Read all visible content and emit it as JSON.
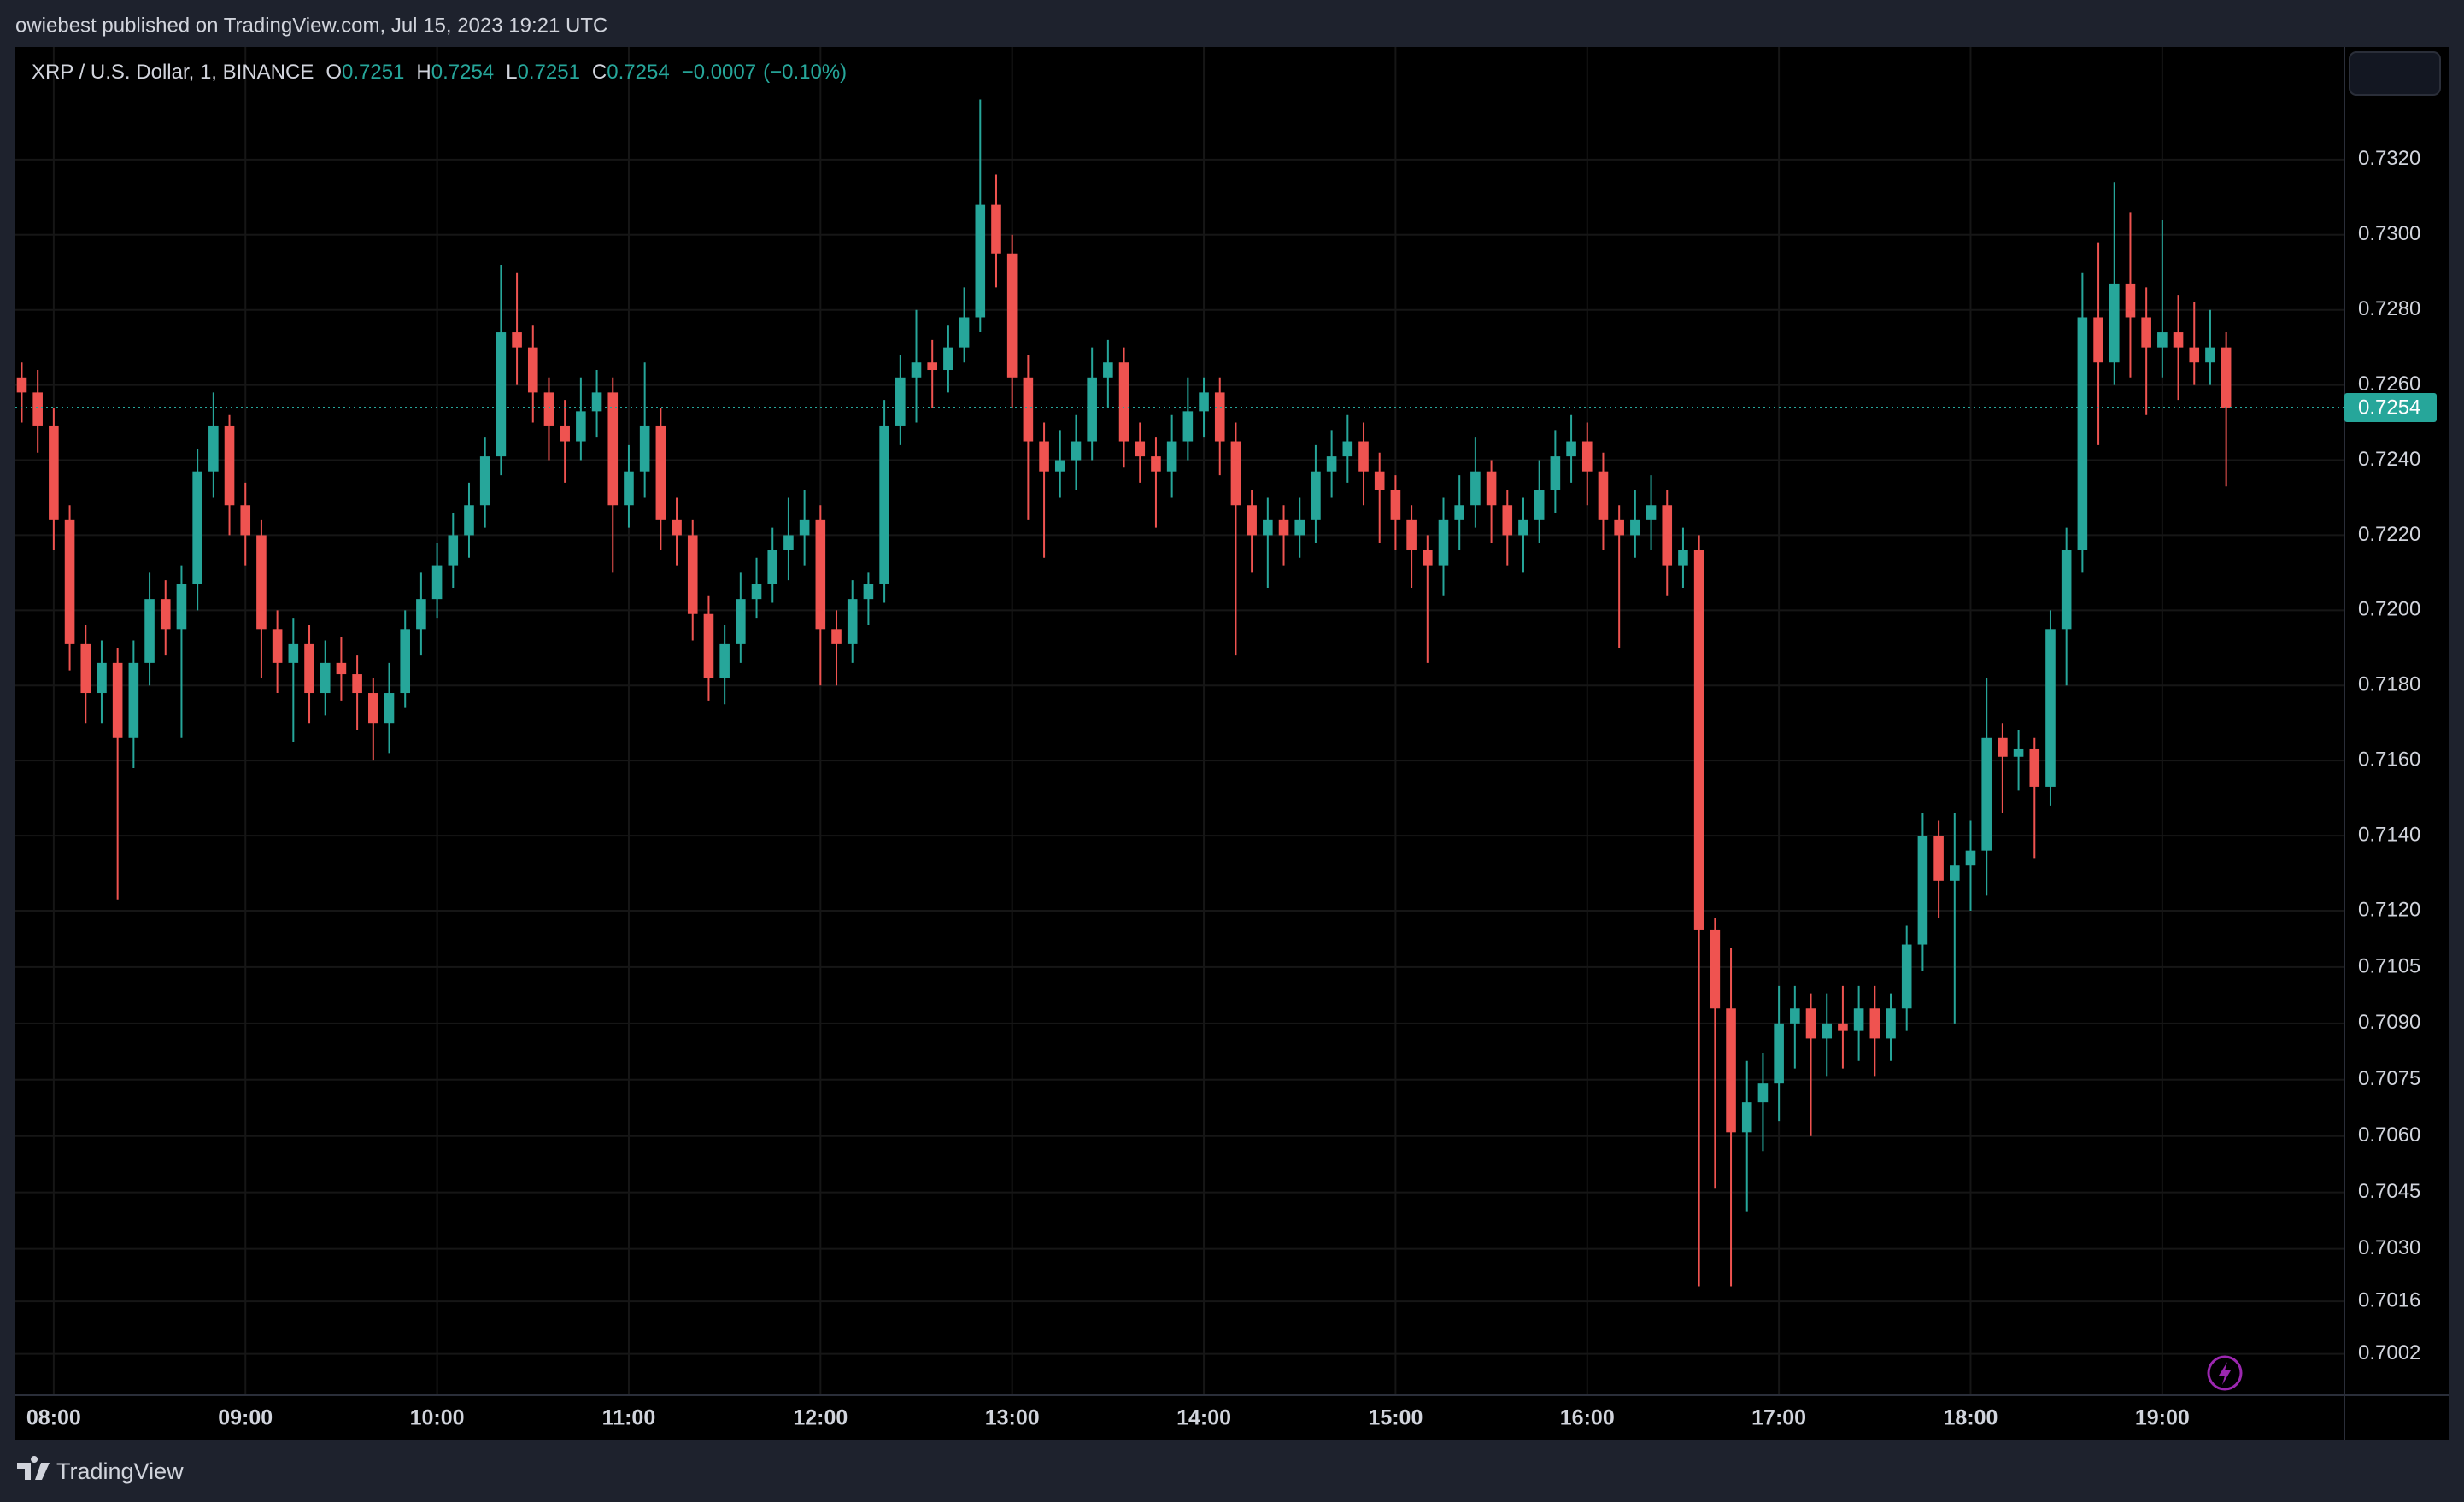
{
  "header": {
    "published": "owiebest published on TradingView.com, Jul 15, 2023 19:21 UTC"
  },
  "chart_data": {
    "type": "candlestick",
    "symbol": "XRP / U.S. Dollar, 1, BINANCE",
    "legend": [
      {
        "label": "O",
        "value": 0.7251
      },
      {
        "label": "H",
        "value": 0.7254
      },
      {
        "label": "L",
        "value": 0.7251
      },
      {
        "label": "C",
        "value": 0.7254
      }
    ],
    "change": {
      "value": -0.0007,
      "label": "−0.0007"
    },
    "change_percent": {
      "value": -0.1,
      "label": "(−0.10%)"
    },
    "up_color": "#26a69a",
    "down_color": "#ef5350",
    "grid": true,
    "last_price": 0.7254,
    "x": [
      "07:50",
      "07:55",
      "08:00",
      "08:05",
      "08:10",
      "08:15",
      "08:20",
      "08:25",
      "08:30",
      "08:35",
      "08:40",
      "08:45",
      "08:50",
      "08:55",
      "09:00",
      "09:05",
      "09:10",
      "09:15",
      "09:20",
      "09:25",
      "09:30",
      "09:35",
      "09:40",
      "09:45",
      "09:50",
      "09:55",
      "10:00",
      "10:05",
      "10:10",
      "10:15",
      "10:20",
      "10:25",
      "10:30",
      "10:35",
      "10:40",
      "10:45",
      "10:50",
      "10:55",
      "11:00",
      "11:05",
      "11:10",
      "11:15",
      "11:20",
      "11:25",
      "11:30",
      "11:35",
      "11:40",
      "11:45",
      "11:50",
      "11:55",
      "12:00",
      "12:05",
      "12:10",
      "12:15",
      "12:20",
      "12:25",
      "12:30",
      "12:35",
      "12:40",
      "12:45",
      "12:50",
      "12:55",
      "13:00",
      "13:05",
      "13:10",
      "13:15",
      "13:20",
      "13:25",
      "13:30",
      "13:35",
      "13:40",
      "13:45",
      "13:50",
      "13:55",
      "14:00",
      "14:05",
      "14:10",
      "14:15",
      "14:20",
      "14:25",
      "14:30",
      "14:35",
      "14:40",
      "14:45",
      "14:50",
      "14:55",
      "15:00",
      "15:05",
      "15:10",
      "15:15",
      "15:20",
      "15:25",
      "15:30",
      "15:35",
      "15:40",
      "15:45",
      "15:50",
      "15:55",
      "16:00",
      "16:05",
      "16:10",
      "16:15",
      "16:20",
      "16:25",
      "16:30",
      "16:35",
      "16:40",
      "16:45",
      "16:50",
      "16:55",
      "17:00",
      "17:05",
      "17:10",
      "17:15",
      "17:20",
      "17:25",
      "17:30",
      "17:35",
      "17:40",
      "17:45",
      "17:50",
      "17:55",
      "18:00",
      "18:05",
      "18:10",
      "18:15",
      "18:20",
      "18:25",
      "18:30",
      "18:35",
      "18:40",
      "18:45",
      "18:50",
      "18:55",
      "19:00",
      "19:05",
      "19:10",
      "19:15",
      "19:20"
    ],
    "open": [
      0.7262,
      0.7258,
      0.7249,
      0.7224,
      0.7191,
      0.7178,
      0.7186,
      0.7166,
      0.7186,
      0.7203,
      0.7195,
      0.7207,
      0.7237,
      0.7249,
      0.7228,
      0.722,
      0.7195,
      0.7186,
      0.7191,
      0.7178,
      0.7186,
      0.7183,
      0.7178,
      0.717,
      0.7178,
      0.7195,
      0.7203,
      0.7212,
      0.722,
      0.7228,
      0.7241,
      0.7274,
      0.727,
      0.7258,
      0.7249,
      0.7245,
      0.7253,
      0.7258,
      0.7228,
      0.7237,
      0.7249,
      0.7224,
      0.722,
      0.7199,
      0.7182,
      0.7191,
      0.7203,
      0.7207,
      0.7216,
      0.722,
      0.7224,
      0.7195,
      0.7191,
      0.7203,
      0.7207,
      0.7249,
      0.7262,
      0.7266,
      0.7264,
      0.727,
      0.7278,
      0.7308,
      0.7295,
      0.7262,
      0.7245,
      0.7237,
      0.724,
      0.7245,
      0.7262,
      0.7266,
      0.7245,
      0.7241,
      0.7237,
      0.7245,
      0.7253,
      0.7258,
      0.7245,
      0.7228,
      0.722,
      0.7224,
      0.722,
      0.7224,
      0.7237,
      0.7241,
      0.7245,
      0.7237,
      0.7232,
      0.7224,
      0.7216,
      0.7212,
      0.7224,
      0.7228,
      0.7237,
      0.7228,
      0.722,
      0.7224,
      0.7232,
      0.7241,
      0.7245,
      0.7237,
      0.7224,
      0.722,
      0.7224,
      0.7228,
      0.7212,
      0.7216,
      0.7115,
      0.7094,
      0.7061,
      0.7069,
      0.7074,
      0.709,
      0.7094,
      0.7086,
      0.709,
      0.7088,
      0.7094,
      0.7086,
      0.7094,
      0.7111,
      0.714,
      0.7128,
      0.7132,
      0.7136,
      0.7166,
      0.7161,
      0.7163,
      0.7153,
      0.7195,
      0.7216,
      0.7278,
      0.7266,
      0.7287,
      0.7278,
      0.727,
      0.7274,
      0.727,
      0.7266,
      0.727
    ],
    "high": [
      0.7266,
      0.7264,
      0.7254,
      0.7228,
      0.7196,
      0.7192,
      0.719,
      0.7192,
      0.721,
      0.7208,
      0.7212,
      0.7243,
      0.7258,
      0.7252,
      0.7234,
      0.7224,
      0.72,
      0.7198,
      0.7196,
      0.7192,
      0.7193,
      0.7188,
      0.7182,
      0.7186,
      0.72,
      0.721,
      0.7218,
      0.7226,
      0.7234,
      0.7246,
      0.7292,
      0.729,
      0.7276,
      0.7262,
      0.7256,
      0.7262,
      0.7264,
      0.7262,
      0.7244,
      0.7266,
      0.7254,
      0.723,
      0.7224,
      0.7204,
      0.7196,
      0.721,
      0.7214,
      0.7222,
      0.723,
      0.7232,
      0.7228,
      0.72,
      0.7208,
      0.721,
      0.7256,
      0.7268,
      0.728,
      0.7272,
      0.7276,
      0.7286,
      0.7336,
      0.7316,
      0.73,
      0.7268,
      0.725,
      0.7248,
      0.7252,
      0.727,
      0.7272,
      0.727,
      0.725,
      0.7246,
      0.7252,
      0.7262,
      0.7262,
      0.7262,
      0.725,
      0.7232,
      0.723,
      0.7228,
      0.723,
      0.7244,
      0.7248,
      0.7252,
      0.725,
      0.7242,
      0.7236,
      0.7228,
      0.722,
      0.723,
      0.7236,
      0.7246,
      0.724,
      0.7232,
      0.723,
      0.724,
      0.7248,
      0.7252,
      0.725,
      0.7242,
      0.7228,
      0.7232,
      0.7236,
      0.7232,
      0.7222,
      0.722,
      0.7118,
      0.711,
      0.708,
      0.7082,
      0.71,
      0.71,
      0.7098,
      0.7098,
      0.71,
      0.71,
      0.71,
      0.7098,
      0.7116,
      0.7146,
      0.7144,
      0.7146,
      0.7144,
      0.7182,
      0.717,
      0.7168,
      0.7166,
      0.72,
      0.7222,
      0.729,
      0.7298,
      0.7314,
      0.7306,
      0.7286,
      0.7304,
      0.7284,
      0.7282,
      0.728,
      0.7274
    ],
    "low": [
      0.725,
      0.7242,
      0.7216,
      0.7184,
      0.717,
      0.717,
      0.7123,
      0.7158,
      0.718,
      0.7188,
      0.7166,
      0.72,
      0.723,
      0.722,
      0.7212,
      0.7182,
      0.7178,
      0.7165,
      0.717,
      0.7172,
      0.7176,
      0.7168,
      0.716,
      0.7162,
      0.7174,
      0.7188,
      0.7198,
      0.7206,
      0.7214,
      0.7222,
      0.7236,
      0.726,
      0.725,
      0.724,
      0.7234,
      0.724,
      0.7246,
      0.721,
      0.7222,
      0.723,
      0.7216,
      0.7212,
      0.7192,
      0.7176,
      0.7175,
      0.7186,
      0.7198,
      0.7202,
      0.7208,
      0.7212,
      0.718,
      0.718,
      0.7186,
      0.7196,
      0.7202,
      0.7244,
      0.725,
      0.7254,
      0.7258,
      0.7266,
      0.7274,
      0.7286,
      0.7254,
      0.7224,
      0.7214,
      0.723,
      0.7232,
      0.724,
      0.7254,
      0.7238,
      0.7234,
      0.7222,
      0.723,
      0.724,
      0.7246,
      0.7236,
      0.7188,
      0.721,
      0.7206,
      0.7212,
      0.7214,
      0.7218,
      0.723,
      0.7234,
      0.7228,
      0.7218,
      0.7216,
      0.7206,
      0.7186,
      0.7204,
      0.7216,
      0.7222,
      0.7218,
      0.7212,
      0.721,
      0.7218,
      0.7226,
      0.7234,
      0.7228,
      0.7216,
      0.719,
      0.7214,
      0.7216,
      0.7204,
      0.7206,
      0.702,
      0.7046,
      0.702,
      0.704,
      0.7056,
      0.7064,
      0.7078,
      0.706,
      0.7076,
      0.7078,
      0.708,
      0.7076,
      0.708,
      0.7088,
      0.7104,
      0.7118,
      0.709,
      0.712,
      0.7124,
      0.7146,
      0.7152,
      0.7134,
      0.7148,
      0.718,
      0.721,
      0.7244,
      0.726,
      0.7262,
      0.7252,
      0.7262,
      0.7256,
      0.726,
      0.726,
      0.7233
    ],
    "close": [
      0.7258,
      0.7249,
      0.7224,
      0.7191,
      0.7178,
      0.7186,
      0.7166,
      0.7186,
      0.7203,
      0.7195,
      0.7207,
      0.7237,
      0.7249,
      0.7228,
      0.722,
      0.7195,
      0.7186,
      0.7191,
      0.7178,
      0.7186,
      0.7183,
      0.7178,
      0.717,
      0.7178,
      0.7195,
      0.7203,
      0.7212,
      0.722,
      0.7228,
      0.7241,
      0.7274,
      0.727,
      0.7258,
      0.7249,
      0.7245,
      0.7253,
      0.7258,
      0.7228,
      0.7237,
      0.7249,
      0.7224,
      0.722,
      0.7199,
      0.7182,
      0.7191,
      0.7203,
      0.7207,
      0.7216,
      0.722,
      0.7224,
      0.7195,
      0.7191,
      0.7203,
      0.7207,
      0.7249,
      0.7262,
      0.7266,
      0.7264,
      0.727,
      0.7278,
      0.7308,
      0.7295,
      0.7262,
      0.7245,
      0.7237,
      0.724,
      0.7245,
      0.7262,
      0.7266,
      0.7245,
      0.7241,
      0.7237,
      0.7245,
      0.7253,
      0.7258,
      0.7245,
      0.7228,
      0.722,
      0.7224,
      0.722,
      0.7224,
      0.7237,
      0.7241,
      0.7245,
      0.7237,
      0.7232,
      0.7224,
      0.7216,
      0.7212,
      0.7224,
      0.7228,
      0.7237,
      0.7228,
      0.722,
      0.7224,
      0.7232,
      0.7241,
      0.7245,
      0.7237,
      0.7224,
      0.722,
      0.7224,
      0.7228,
      0.7212,
      0.7216,
      0.7115,
      0.7094,
      0.7061,
      0.7069,
      0.7074,
      0.709,
      0.7094,
      0.7086,
      0.709,
      0.7088,
      0.7094,
      0.7086,
      0.7094,
      0.7111,
      0.714,
      0.7128,
      0.7132,
      0.7136,
      0.7166,
      0.7161,
      0.7163,
      0.7153,
      0.7195,
      0.7216,
      0.7278,
      0.7266,
      0.7287,
      0.7278,
      0.727,
      0.7274,
      0.727,
      0.7266,
      0.727,
      0.7254
    ],
    "xlim": [
      "07:48",
      "19:57"
    ],
    "xticks": [
      "08:00",
      "09:00",
      "10:00",
      "11:00",
      "12:00",
      "13:00",
      "14:00",
      "15:00",
      "16:00",
      "17:00",
      "18:00",
      "19:00"
    ],
    "ylim": [
      0.6991,
      0.735
    ],
    "yticks": [
      {
        "value": 0.732,
        "label": "0.7320"
      },
      {
        "value": 0.73,
        "label": "0.7300"
      },
      {
        "value": 0.728,
        "label": "0.7280"
      },
      {
        "value": 0.726,
        "label": "0.7260"
      },
      {
        "value": 0.724,
        "label": "0.7240"
      },
      {
        "value": 0.722,
        "label": "0.7220"
      },
      {
        "value": 0.72,
        "label": "0.7200"
      },
      {
        "value": 0.718,
        "label": "0.7180"
      },
      {
        "value": 0.716,
        "label": "0.7160"
      },
      {
        "value": 0.714,
        "label": "0.7140"
      },
      {
        "value": 0.712,
        "label": "0.7120"
      },
      0.7105,
      {
        "value": 0.709,
        "label": "0.7090"
      },
      0.7075,
      {
        "value": 0.706,
        "label": "0.7060"
      },
      0.7045,
      {
        "value": 0.703,
        "label": "0.7030"
      },
      0.7016,
      0.7002
    ]
  },
  "footer": {
    "brand": "TradingView"
  }
}
